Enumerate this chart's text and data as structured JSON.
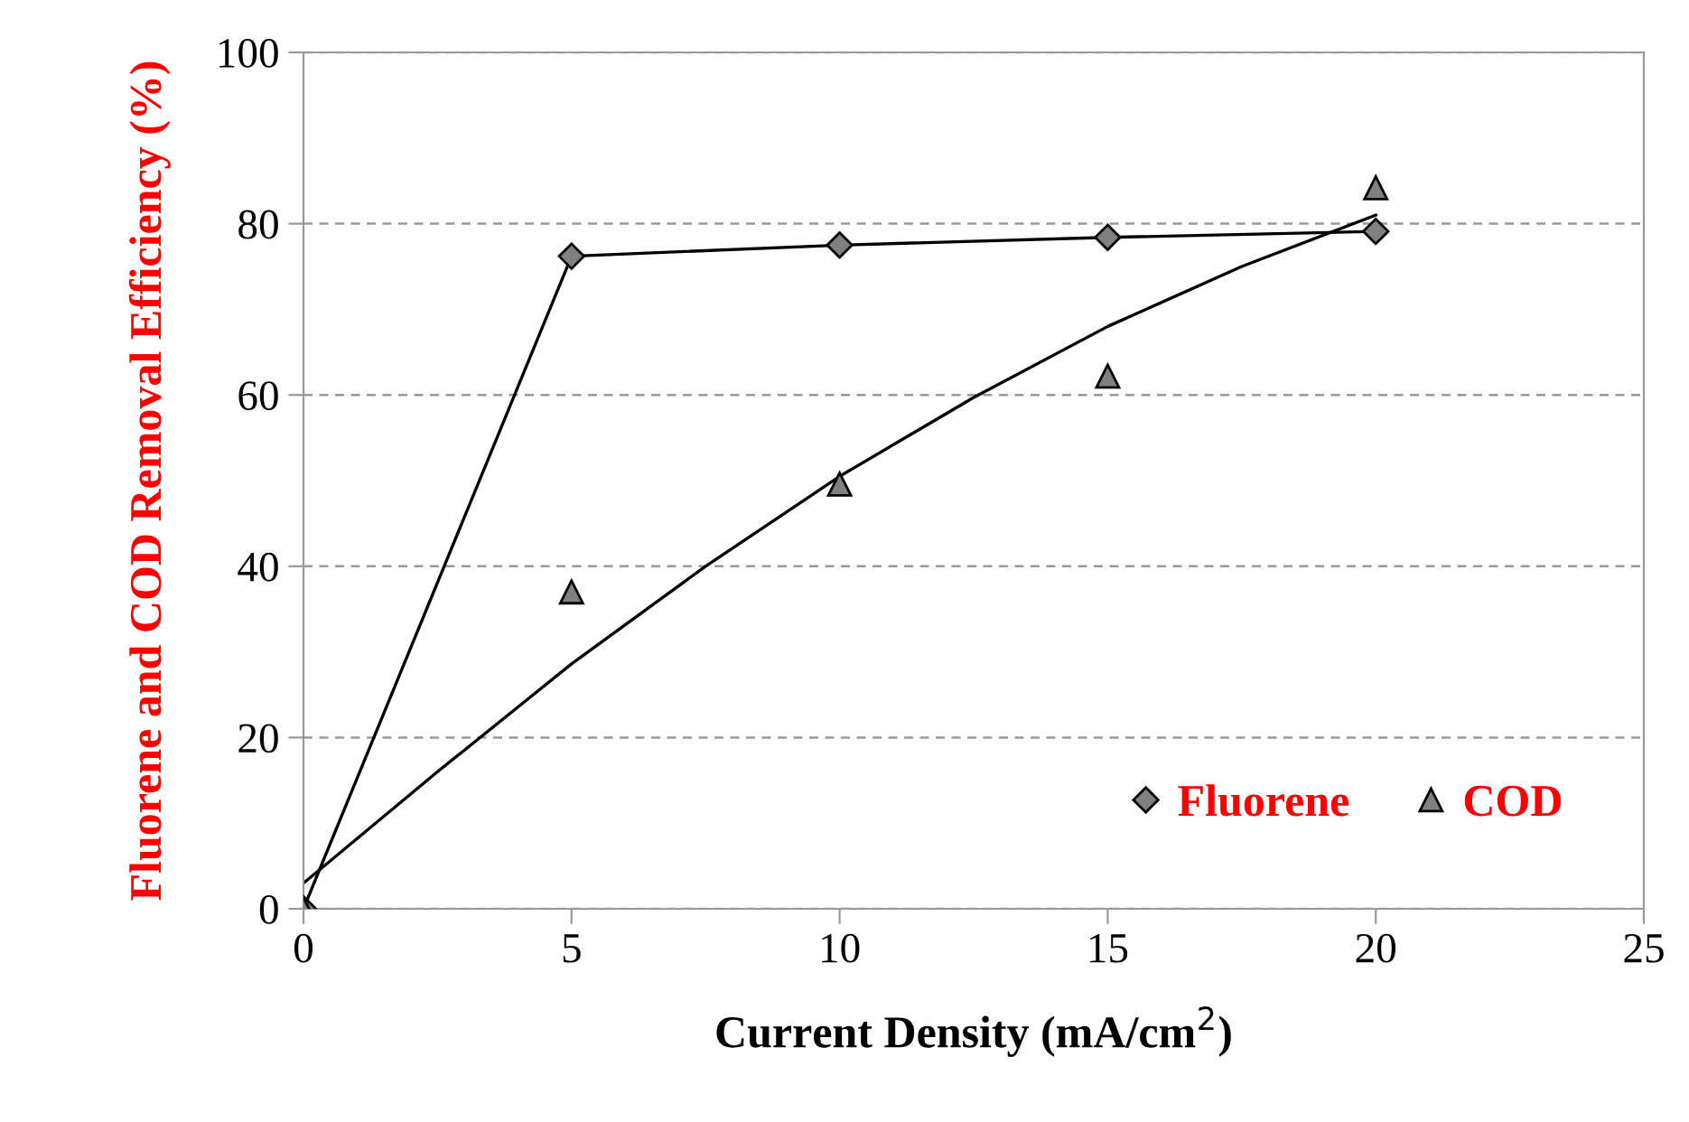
{
  "chart_data": {
    "type": "scatter",
    "xlabel": "Current Density (mA/cm$^{2}$)",
    "ylabel": "Fluorene and COD Removal Efficiency (%)",
    "xlim": [
      0,
      25
    ],
    "ylim": [
      0,
      100
    ],
    "xticks": [
      0,
      5,
      10,
      15,
      20,
      25
    ],
    "yticks": [
      0,
      20,
      40,
      60,
      80,
      100
    ],
    "grid": "y",
    "legend": "bottom right",
    "series": [
      {
        "type": "line",
        "color": "#000000",
        "marker": "none",
        "x": [
          0,
          5,
          10,
          15,
          20
        ],
        "values": [
          0,
          76.2,
          77.5,
          78.4,
          79.1
        ]
      },
      {
        "type": "line",
        "color": "#000000",
        "marker": "none",
        "x": [
          0,
          2.5,
          5,
          7.5,
          10,
          12.5,
          15,
          17.5,
          20
        ],
        "values": [
          3,
          16,
          28.6,
          40,
          50.5,
          59.7,
          68,
          75,
          81
        ]
      },
      {
        "name": "Fluorene",
        "color": "#808080",
        "marker": "diamond",
        "x": [
          0,
          5,
          10,
          15,
          20
        ],
        "values": [
          0,
          76.2,
          77.5,
          78.4,
          79.1
        ]
      },
      {
        "name": "COD",
        "color": "#808080",
        "marker": "triangle",
        "x": [
          0,
          5,
          10,
          15,
          20
        ],
        "values": [
          0,
          37,
          49.6,
          62.2,
          84.2
        ]
      }
    ]
  }
}
